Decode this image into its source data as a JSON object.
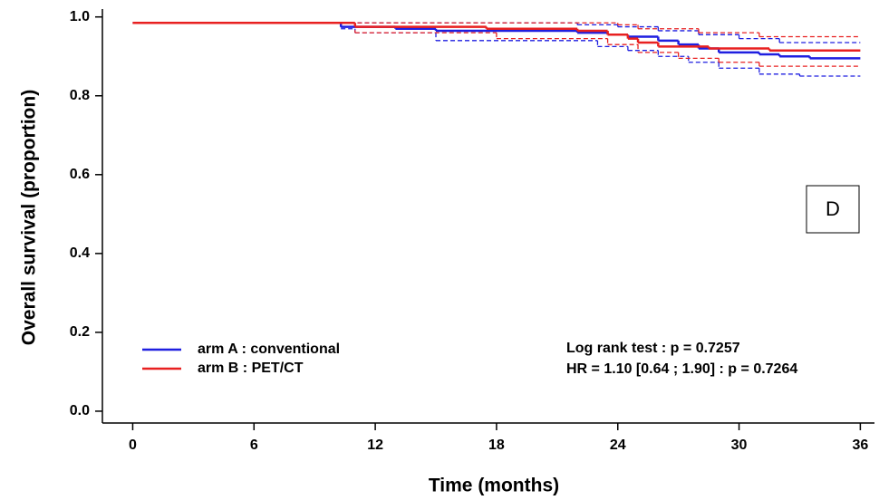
{
  "chart_data": {
    "type": "step",
    "xlabel": "Time (months)",
    "ylabel": "Overall survival (proportion)",
    "xlim": [
      -1.5,
      36.7
    ],
    "ylim": [
      -0.03,
      1.02
    ],
    "xticks": [
      0,
      6,
      12,
      18,
      24,
      30,
      36
    ],
    "yticks": [
      {
        "value": 0,
        "label": "0.0"
      },
      0.2,
      0.4,
      0.6,
      0.8,
      {
        "value": 1,
        "label": "1.0"
      }
    ],
    "series": [
      {
        "name": "arm A : conventional",
        "color": "#1f1fe0",
        "x": [
          0,
          10.3,
          13,
          15,
          22,
          23.5,
          24.5,
          26,
          27,
          28,
          29,
          31,
          32,
          33.5,
          36
        ],
        "values": [
          0.985,
          0.975,
          0.97,
          0.965,
          0.96,
          0.955,
          0.95,
          0.94,
          0.93,
          0.92,
          0.91,
          0.905,
          0.9,
          0.895,
          0.895
        ],
        "lower": {
          "x": [
            0,
            10.3,
            11,
            15,
            23,
            24.5,
            26,
            27.5,
            29,
            31,
            33,
            36
          ],
          "values": [
            0.985,
            0.97,
            0.96,
            0.94,
            0.925,
            0.915,
            0.9,
            0.885,
            0.87,
            0.855,
            0.85,
            0.85
          ]
        },
        "upper": {
          "x": [
            0,
            22,
            24,
            26,
            28,
            30,
            32,
            36
          ],
          "values": [
            0.985,
            0.98,
            0.975,
            0.965,
            0.955,
            0.945,
            0.935,
            0.935
          ]
        }
      },
      {
        "name": "arm B : PET/CT",
        "color": "#e82020",
        "x": [
          0,
          11,
          17.5,
          22,
          23.5,
          24.5,
          25,
          26,
          28.5,
          31.5,
          36
        ],
        "values": [
          0.985,
          0.975,
          0.97,
          0.965,
          0.955,
          0.945,
          0.935,
          0.925,
          0.92,
          0.915,
          0.915
        ],
        "lower": {
          "x": [
            0,
            11,
            18,
            23.5,
            25,
            27,
            29,
            31,
            36
          ],
          "values": [
            0.985,
            0.96,
            0.945,
            0.93,
            0.91,
            0.895,
            0.885,
            0.875,
            0.875
          ]
        },
        "upper": {
          "x": [
            0,
            24,
            25,
            28,
            31,
            36
          ],
          "values": [
            0.985,
            0.98,
            0.97,
            0.96,
            0.95,
            0.95
          ]
        }
      }
    ],
    "annotations": [
      "Log rank test : p = 0.7257",
      "HR = 1.10 [0.64 ; 1.90] : p = 0.7264"
    ],
    "panel_label": "D"
  }
}
